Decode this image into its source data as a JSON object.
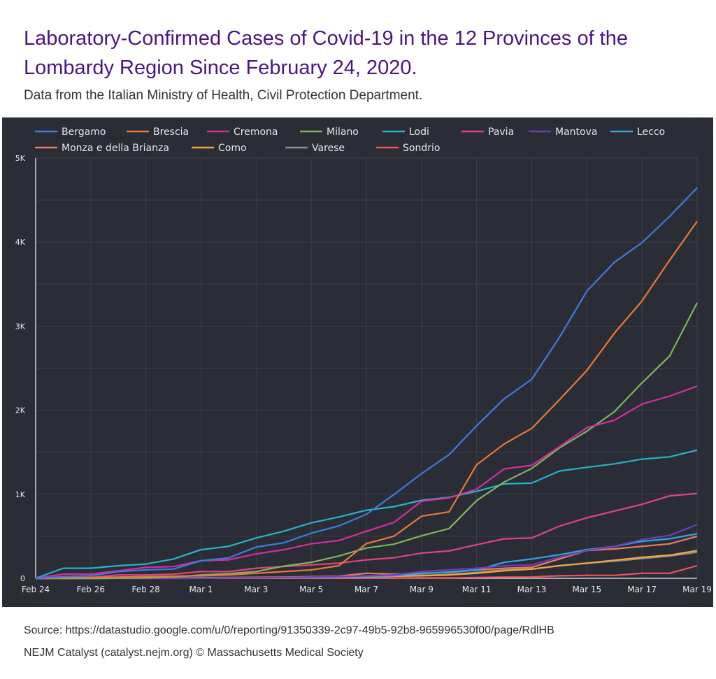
{
  "header": {
    "title": "Laboratory-Confirmed Cases of Covid-19 in the 12 Provinces of the Lombardy Region Since February 24, 2020.",
    "subtitle": "Data from the Italian Ministry of Health, Civil Protection Department."
  },
  "footer": {
    "source": "Source: https://datastudio.google.com/u/0/reporting/91350339-2c97-49b5-92b8-965996530f00/page/RdlHB",
    "credit": "NEJM Catalyst (catalyst.nejm.org) © Massachusetts Medical Society"
  },
  "chart_data": {
    "type": "line",
    "title": "Laboratory-Confirmed Cases of Covid-19 in the 12 Provinces of the Lombardy Region Since February 24, 2020.",
    "xlabel": "",
    "ylabel": "",
    "ylim": [
      0,
      5000
    ],
    "yticks": [
      0,
      1000,
      2000,
      3000,
      4000,
      5000
    ],
    "ytick_labels": [
      "0",
      "1K",
      "2K",
      "3K",
      "4K",
      "5K"
    ],
    "grid": true,
    "grid_step": 500,
    "legend_position": "top-left",
    "x": [
      "Feb 24",
      "Feb 25",
      "Feb 26",
      "Feb 27",
      "Feb 28",
      "Feb 29",
      "Mar 1",
      "Mar 2",
      "Mar 3",
      "Mar 4",
      "Mar 5",
      "Mar 6",
      "Mar 7",
      "Mar 8",
      "Mar 9",
      "Mar 10",
      "Mar 11",
      "Mar 12",
      "Mar 13",
      "Mar 14",
      "Mar 15",
      "Mar 16",
      "Mar 17",
      "Mar 18",
      "Mar 19"
    ],
    "xtick_labels": [
      "Feb 24",
      "Feb 26",
      "Feb 28",
      "Mar 1",
      "Mar 3",
      "Mar 5",
      "Mar 7",
      "Mar 9",
      "Mar 11",
      "Mar 13",
      "Mar 15",
      "Mar 17",
      "Mar 19"
    ],
    "series": [
      {
        "name": "Bergamo",
        "color": "#3b7be0",
        "values": [
          0,
          20,
          30,
          80,
          100,
          110,
          209,
          243,
          372,
          423,
          537,
          623,
          761,
          997,
          1245,
          1472,
          1815,
          2136,
          2368,
          2864,
          3416,
          3760,
          3993,
          4305,
          4645
        ]
      },
      {
        "name": "Brescia",
        "color": "#e8783a",
        "values": [
          0,
          5,
          10,
          15,
          20,
          25,
          30,
          40,
          60,
          80,
          100,
          150,
          413,
          501,
          739,
          790,
          1351,
          1598,
          1784,
          2122,
          2473,
          2918,
          3300,
          3784,
          4247
        ]
      },
      {
        "name": "Cremona",
        "color": "#d42e9c",
        "values": [
          0,
          50,
          50,
          90,
          130,
          140,
          210,
          220,
          290,
          340,
          410,
          450,
          560,
          665,
          916,
          957,
          1061,
          1302,
          1344,
          1565,
          1792,
          1881,
          2073,
          2167,
          2286
        ]
      },
      {
        "name": "Milano",
        "color": "#7cb65a",
        "values": [
          0,
          0,
          0,
          3,
          5,
          15,
          40,
          55,
          80,
          145,
          190,
          265,
          360,
          406,
          506,
          592,
          925,
          1146,
          1307,
          1551,
          1750,
          1983,
          2326,
          2644,
          3278
        ]
      },
      {
        "name": "Lodi",
        "color": "#27b3c8",
        "values": [
          0,
          120,
          120,
          150,
          170,
          230,
          340,
          380,
          480,
          560,
          660,
          730,
          810,
          853,
          928,
          963,
          1035,
          1123,
          1133,
          1276,
          1320,
          1362,
          1418,
          1445,
          1525
        ]
      },
      {
        "name": "Pavia",
        "color": "#e0447e",
        "values": [
          0,
          5,
          10,
          40,
          40,
          50,
          80,
          80,
          120,
          140,
          160,
          180,
          220,
          245,
          300,
          325,
          400,
          470,
          480,
          620,
          720,
          800,
          880,
          980,
          1010
        ]
      },
      {
        "name": "Mantova",
        "color": "#6a3fb8",
        "values": [
          0,
          0,
          0,
          0,
          0,
          0,
          2,
          4,
          6,
          10,
          15,
          20,
          30,
          40,
          80,
          100,
          120,
          150,
          160,
          250,
          330,
          380,
          460,
          510,
          640
        ]
      },
      {
        "name": "Lecco",
        "color": "#2ea6e6",
        "values": [
          0,
          0,
          0,
          1,
          2,
          3,
          4,
          5,
          6,
          8,
          10,
          15,
          20,
          30,
          55,
          75,
          100,
          190,
          230,
          280,
          340,
          380,
          440,
          470,
          530
        ]
      },
      {
        "name": "Monza e della Brianza",
        "color": "#ef7b5e",
        "values": [
          0,
          0,
          0,
          1,
          3,
          5,
          8,
          10,
          12,
          15,
          20,
          25,
          60,
          50,
          60,
          70,
          100,
          120,
          130,
          230,
          330,
          350,
          380,
          410,
          500
        ]
      },
      {
        "name": "Como",
        "color": "#f2a53a",
        "values": [
          0,
          0,
          0,
          1,
          1,
          1,
          2,
          3,
          5,
          7,
          10,
          12,
          15,
          25,
          30,
          40,
          60,
          90,
          110,
          150,
          180,
          215,
          250,
          275,
          330
        ]
      },
      {
        "name": "Varese",
        "color": "#8f8f8f",
        "values": [
          0,
          0,
          0,
          1,
          1,
          2,
          3,
          4,
          5,
          7,
          10,
          14,
          20,
          25,
          35,
          45,
          70,
          100,
          110,
          150,
          180,
          205,
          235,
          265,
          310
        ]
      },
      {
        "name": "Sondrio",
        "color": "#f05060",
        "values": [
          0,
          0,
          0,
          0,
          0,
          0,
          1,
          1,
          1,
          1,
          2,
          2,
          3,
          3,
          5,
          5,
          10,
          15,
          15,
          30,
          35,
          35,
          60,
          60,
          150
        ]
      }
    ]
  }
}
